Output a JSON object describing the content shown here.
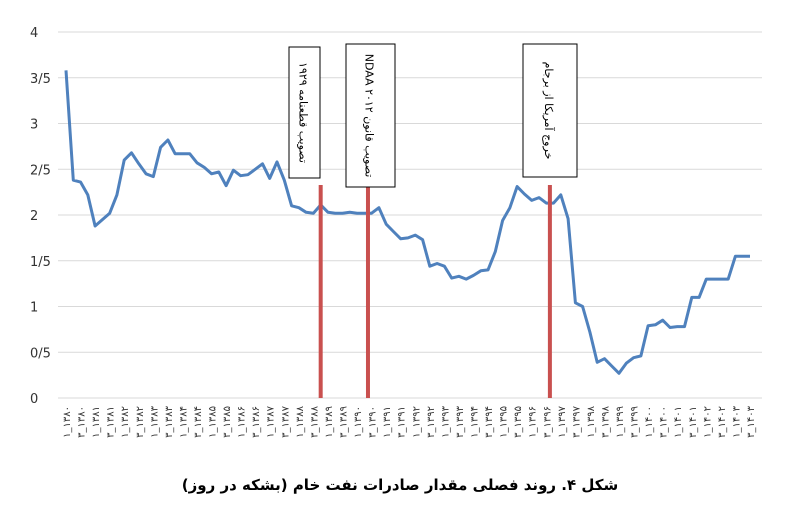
{
  "chart_data": {
    "type": "line",
    "title": "شکل ۴. روند فصلی مقدار صادرات نفت خام (بشکه در روز)",
    "categories": [
      "۱_۱۳۸۰",
      null,
      "۳_۱۳۸۰",
      null,
      "۱_۱۳۸۱",
      null,
      "۳_۱۳۸۱",
      null,
      "۱_۱۳۸۲",
      null,
      "۳_۱۳۸۲",
      null,
      "۱_۱۳۸۳",
      null,
      "۳_۱۳۸۳",
      null,
      "۱_۱۳۸۴",
      null,
      "۳_۱۳۸۴",
      null,
      "۱_۱۳۸۵",
      null,
      "۳_۱۳۸۵",
      null,
      "۱_۱۳۸۶",
      null,
      "۳_۱۳۸۶",
      null,
      "۱_۱۳۸۷",
      null,
      "۳_۱۳۸۷",
      null,
      "۱_۱۳۸۸",
      null,
      "۳_۱۳۸۸",
      null,
      "۱_۱۳۸۹",
      null,
      "۳_۱۳۸۹",
      null,
      "۱_۱۳۹۰",
      null,
      "۳_۱۳۹۰",
      null,
      "۱_۱۳۹۱",
      null,
      "۳_۱۳۹۱",
      null,
      "۱_۱۳۹۲",
      null,
      "۳_۱۳۹۲",
      null,
      "۱_۱۳۹۳",
      null,
      "۳_۱۳۹۳",
      null,
      "۱_۱۳۹۴",
      null,
      "۳_۱۳۹۴",
      null,
      "۱_۱۳۹۵",
      null,
      "۳_۱۳۹۵",
      null,
      "۱_۱۳۹۶",
      null,
      "۳_۱۳۹۶",
      null,
      "۱_۱۳۹۷",
      null,
      "۳_۱۳۹۷",
      null,
      "۱_۱۳۹۸",
      null,
      "۳_۱۳۹۸",
      null,
      "۱_۱۳۹۹",
      null,
      "۳_۱۳۹۹",
      null,
      "۱_۱۴۰۰",
      null,
      "۳_۱۴۰۰",
      null,
      "۱_۱۴۰۱",
      null,
      "۳_۱۴۰۱",
      null,
      "۱_۱۴۰۲",
      null,
      "۳_۱۴۰۲",
      null,
      "۱_۱۴۰۳",
      null,
      "۳_۱۴۰۳"
    ],
    "values": [
      3.58,
      2.38,
      2.36,
      2.22,
      1.88,
      1.95,
      2.02,
      2.22,
      2.6,
      2.68,
      2.56,
      2.45,
      2.42,
      2.74,
      2.82,
      2.67,
      2.67,
      2.67,
      2.57,
      2.52,
      2.45,
      2.47,
      2.32,
      2.49,
      2.43,
      2.44,
      2.5,
      2.56,
      2.4,
      2.58,
      2.38,
      2.1,
      2.08,
      2.03,
      2.02,
      2.11,
      2.03,
      2.02,
      2.02,
      2.03,
      2.02,
      2.02,
      2.02,
      2.08,
      1.9,
      1.82,
      1.74,
      1.75,
      1.78,
      1.73,
      1.44,
      1.47,
      1.44,
      1.31,
      1.33,
      1.3,
      1.34,
      1.39,
      1.4,
      1.6,
      1.94,
      2.08,
      2.31,
      2.23,
      2.16,
      2.19,
      2.13,
      2.13,
      2.22,
      1.96,
      1.04,
      1.0,
      0.72,
      0.39,
      0.43,
      0.35,
      0.27,
      0.38,
      0.44,
      0.46,
      0.79,
      0.8,
      0.85,
      0.77,
      0.78,
      0.78,
      1.1,
      1.1,
      1.3,
      1.3,
      1.3,
      1.3,
      1.55,
      1.55,
      1.55
    ],
    "color": "#4f81bd",
    "ylim": [
      0,
      4
    ],
    "yticks": [
      0,
      {
        "value": 0.5,
        "label": "0/5"
      },
      1,
      {
        "value": 1.5,
        "label": "1/5"
      },
      2,
      {
        "value": 2.5,
        "label": "2/5"
      },
      3,
      {
        "value": 3.5,
        "label": "3/5"
      },
      4
    ],
    "grid": true,
    "annotations": [
      {
        "text": "تصویب قطعنامه ۱۹۲۹",
        "index": 35,
        "color": "#c9504f"
      },
      {
        "text": "تصویب قانون NDAA ۲۰۱۲",
        "index": 41.5,
        "color": "#c9504f"
      },
      {
        "text": "خروج آمریکا از برجام",
        "index": 66.5,
        "color": "#c9504f"
      }
    ]
  }
}
